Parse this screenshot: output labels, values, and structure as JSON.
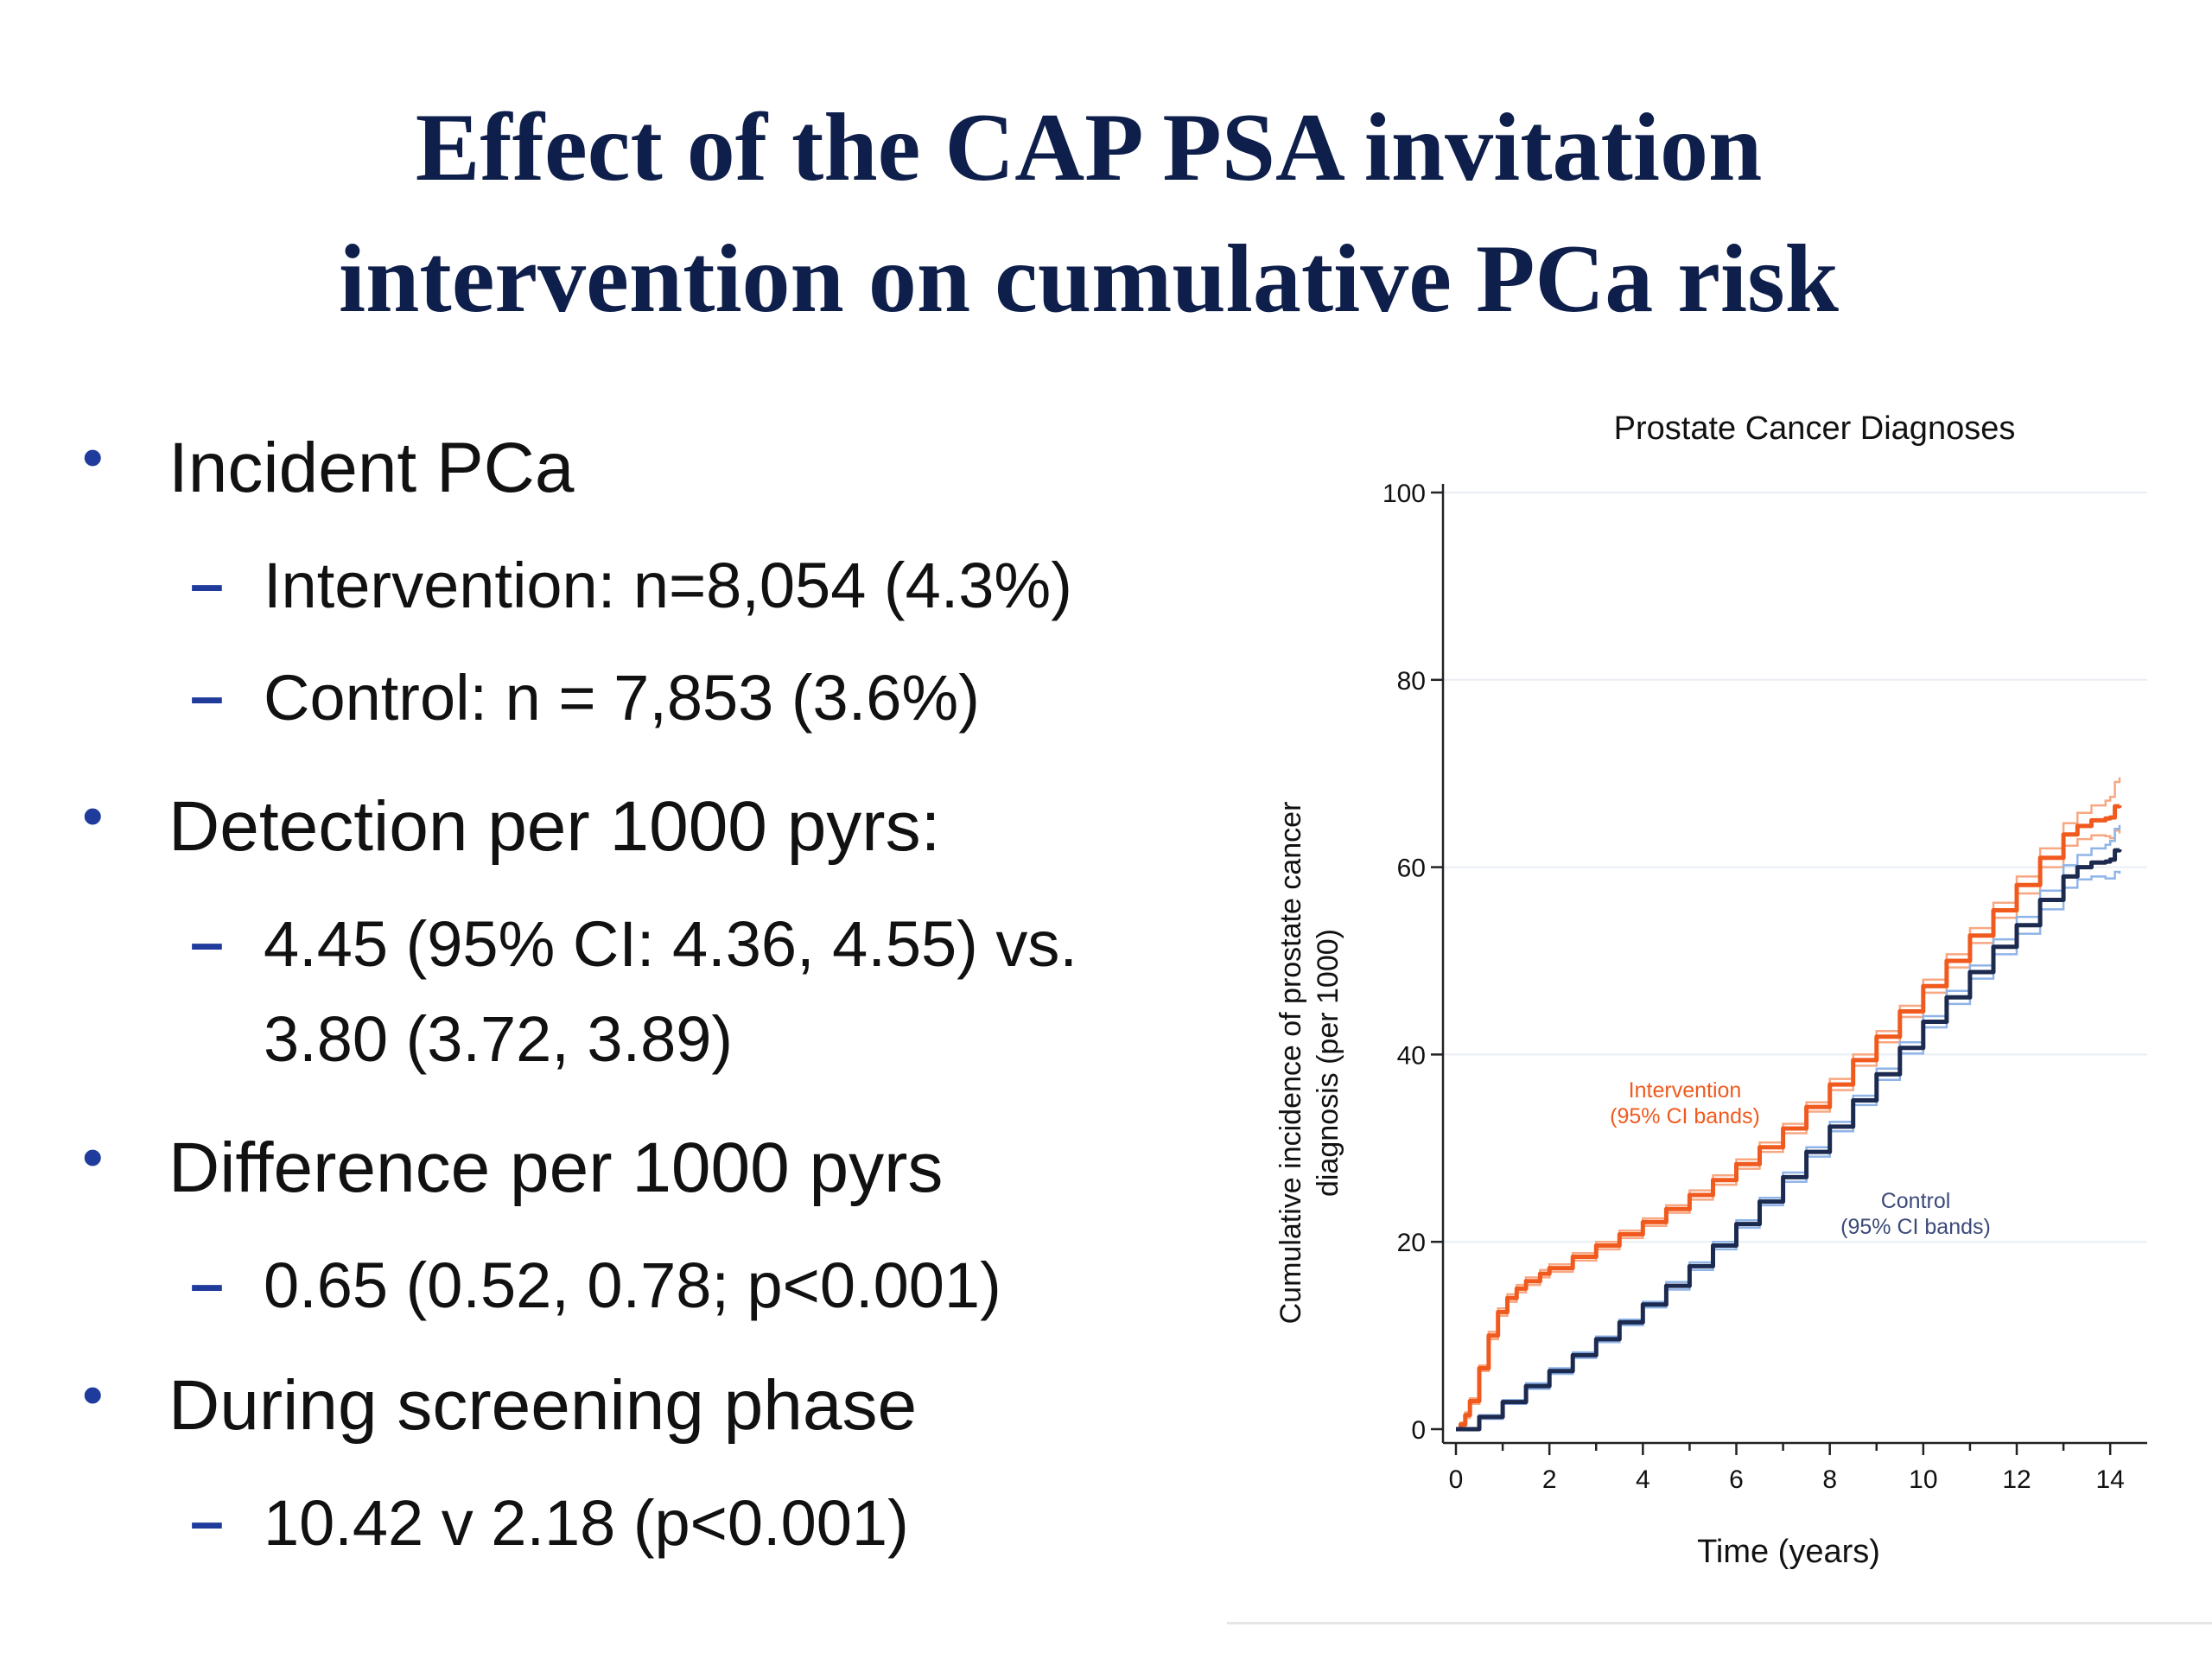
{
  "slide": {
    "title_line1": "Effect of the CAP PSA invitation",
    "title_line2": "intervention on cumulative PCa risk"
  },
  "bullets": [
    {
      "level": 1,
      "text": "Incident PCa"
    },
    {
      "level": 2,
      "text": "Intervention: n=8,054 (4.3%)"
    },
    {
      "level": 2,
      "text": "Control: n = 7,853 (3.6%)"
    },
    {
      "level": 1,
      "text": "Detection per 1000 pyrs:"
    },
    {
      "level": 2,
      "text": "4.45 (95% CI: 4.36, 4.55) vs."
    },
    {
      "level": 2,
      "text": "3.80 (3.72, 3.89)",
      "continuation": true
    },
    {
      "level": 1,
      "text": "Difference per 1000 pyrs"
    },
    {
      "level": 2,
      "text": "0.65 (0.52, 0.78; p<0.001)"
    },
    {
      "level": 1,
      "text": "During screening phase"
    },
    {
      "level": 2,
      "text": "10.42 v 2.18  (p<0.001)"
    }
  ],
  "bullet_markers": {
    "level1": "•",
    "level2": "–"
  },
  "colors": {
    "title": "#0f1f4b",
    "bullet_marker": "#1f3c9c",
    "intervention": "#f05a1e",
    "intervention_ci": "#f7a882",
    "control": "#1c2a4f",
    "control_ci": "#8fb4e8",
    "control_label": "#3c4a7a",
    "gridline": "#e9eef4"
  },
  "chart_data": {
    "type": "line",
    "title": "Prostate Cancer Diagnoses",
    "xlabel": "Time (years)",
    "ylabel_line1": "Cumulative incidence of prostate cancer",
    "ylabel_line2": "diagnosis (per 1000)",
    "xlim": [
      0,
      14.2
    ],
    "ylim": [
      0,
      100
    ],
    "xticks": [
      0,
      2,
      4,
      6,
      8,
      10,
      12,
      14
    ],
    "yticks": [
      0,
      20,
      40,
      60,
      80,
      100
    ],
    "grid": "horizontal",
    "step": true,
    "series": [
      {
        "name": "Intervention",
        "ci_label": "(95% CI bands)",
        "x": [
          0,
          0.1,
          0.2,
          0.3,
          0.5,
          0.7,
          0.9,
          1.1,
          1.3,
          1.5,
          1.8,
          2,
          2.5,
          3,
          3.5,
          4,
          4.5,
          5,
          5.5,
          6,
          6.5,
          7,
          7.5,
          8,
          8.5,
          9,
          9.5,
          10,
          10.5,
          11,
          11.5,
          12,
          12.5,
          13,
          13.3,
          13.6,
          13.9,
          14,
          14.1,
          14.2
        ],
        "y": [
          0,
          0.5,
          1.5,
          3,
          6.5,
          10,
          12.5,
          14,
          15,
          15.8,
          16.6,
          17.2,
          18.4,
          19.6,
          20.8,
          22.1,
          23.5,
          25,
          26.6,
          28.3,
          30.1,
          32.1,
          34.4,
          36.8,
          39.4,
          41.9,
          44.6,
          47.3,
          50,
          52.7,
          55.4,
          58.1,
          61,
          63.5,
          64.4,
          65,
          65.2,
          65.3,
          66.5,
          66.6
        ],
        "ci_halfwidth": [
          0,
          0.2,
          0.3,
          0.3,
          0.3,
          0.4,
          0.4,
          0.4,
          0.4,
          0.4,
          0.4,
          0.4,
          0.4,
          0.4,
          0.4,
          0.4,
          0.4,
          0.5,
          0.5,
          0.5,
          0.5,
          0.5,
          0.5,
          0.6,
          0.6,
          0.6,
          0.6,
          0.7,
          0.7,
          0.8,
          0.8,
          0.9,
          1,
          1.2,
          1.4,
          1.6,
          1.9,
          2.2,
          2.6,
          3
        ]
      },
      {
        "name": "Control",
        "ci_label": "(95% CI bands)",
        "x": [
          0,
          0.5,
          1,
          1.5,
          2,
          2.5,
          3,
          3.5,
          4,
          4.5,
          5,
          5.5,
          6,
          6.5,
          7,
          7.5,
          8,
          8.5,
          9,
          9.5,
          10,
          10.5,
          11,
          11.5,
          12,
          12.5,
          13,
          13.3,
          13.6,
          13.9,
          14,
          14.1,
          14.2
        ],
        "y": [
          0,
          1.3,
          2.9,
          4.6,
          6.2,
          7.9,
          9.6,
          11.4,
          13.3,
          15.3,
          17.4,
          19.6,
          21.9,
          24.3,
          26.9,
          29.6,
          32.3,
          35.1,
          37.9,
          40.7,
          43.5,
          46.1,
          48.8,
          51.5,
          53.8,
          56.5,
          59,
          60,
          60.5,
          60.6,
          60.8,
          61.8,
          61.9
        ],
        "ci_halfwidth": [
          0,
          0.2,
          0.2,
          0.3,
          0.3,
          0.3,
          0.3,
          0.3,
          0.3,
          0.4,
          0.4,
          0.4,
          0.4,
          0.4,
          0.5,
          0.5,
          0.5,
          0.5,
          0.6,
          0.6,
          0.6,
          0.7,
          0.7,
          0.8,
          0.9,
          1,
          1.2,
          1.3,
          1.5,
          1.8,
          2,
          2.3,
          2.6
        ]
      }
    ]
  }
}
